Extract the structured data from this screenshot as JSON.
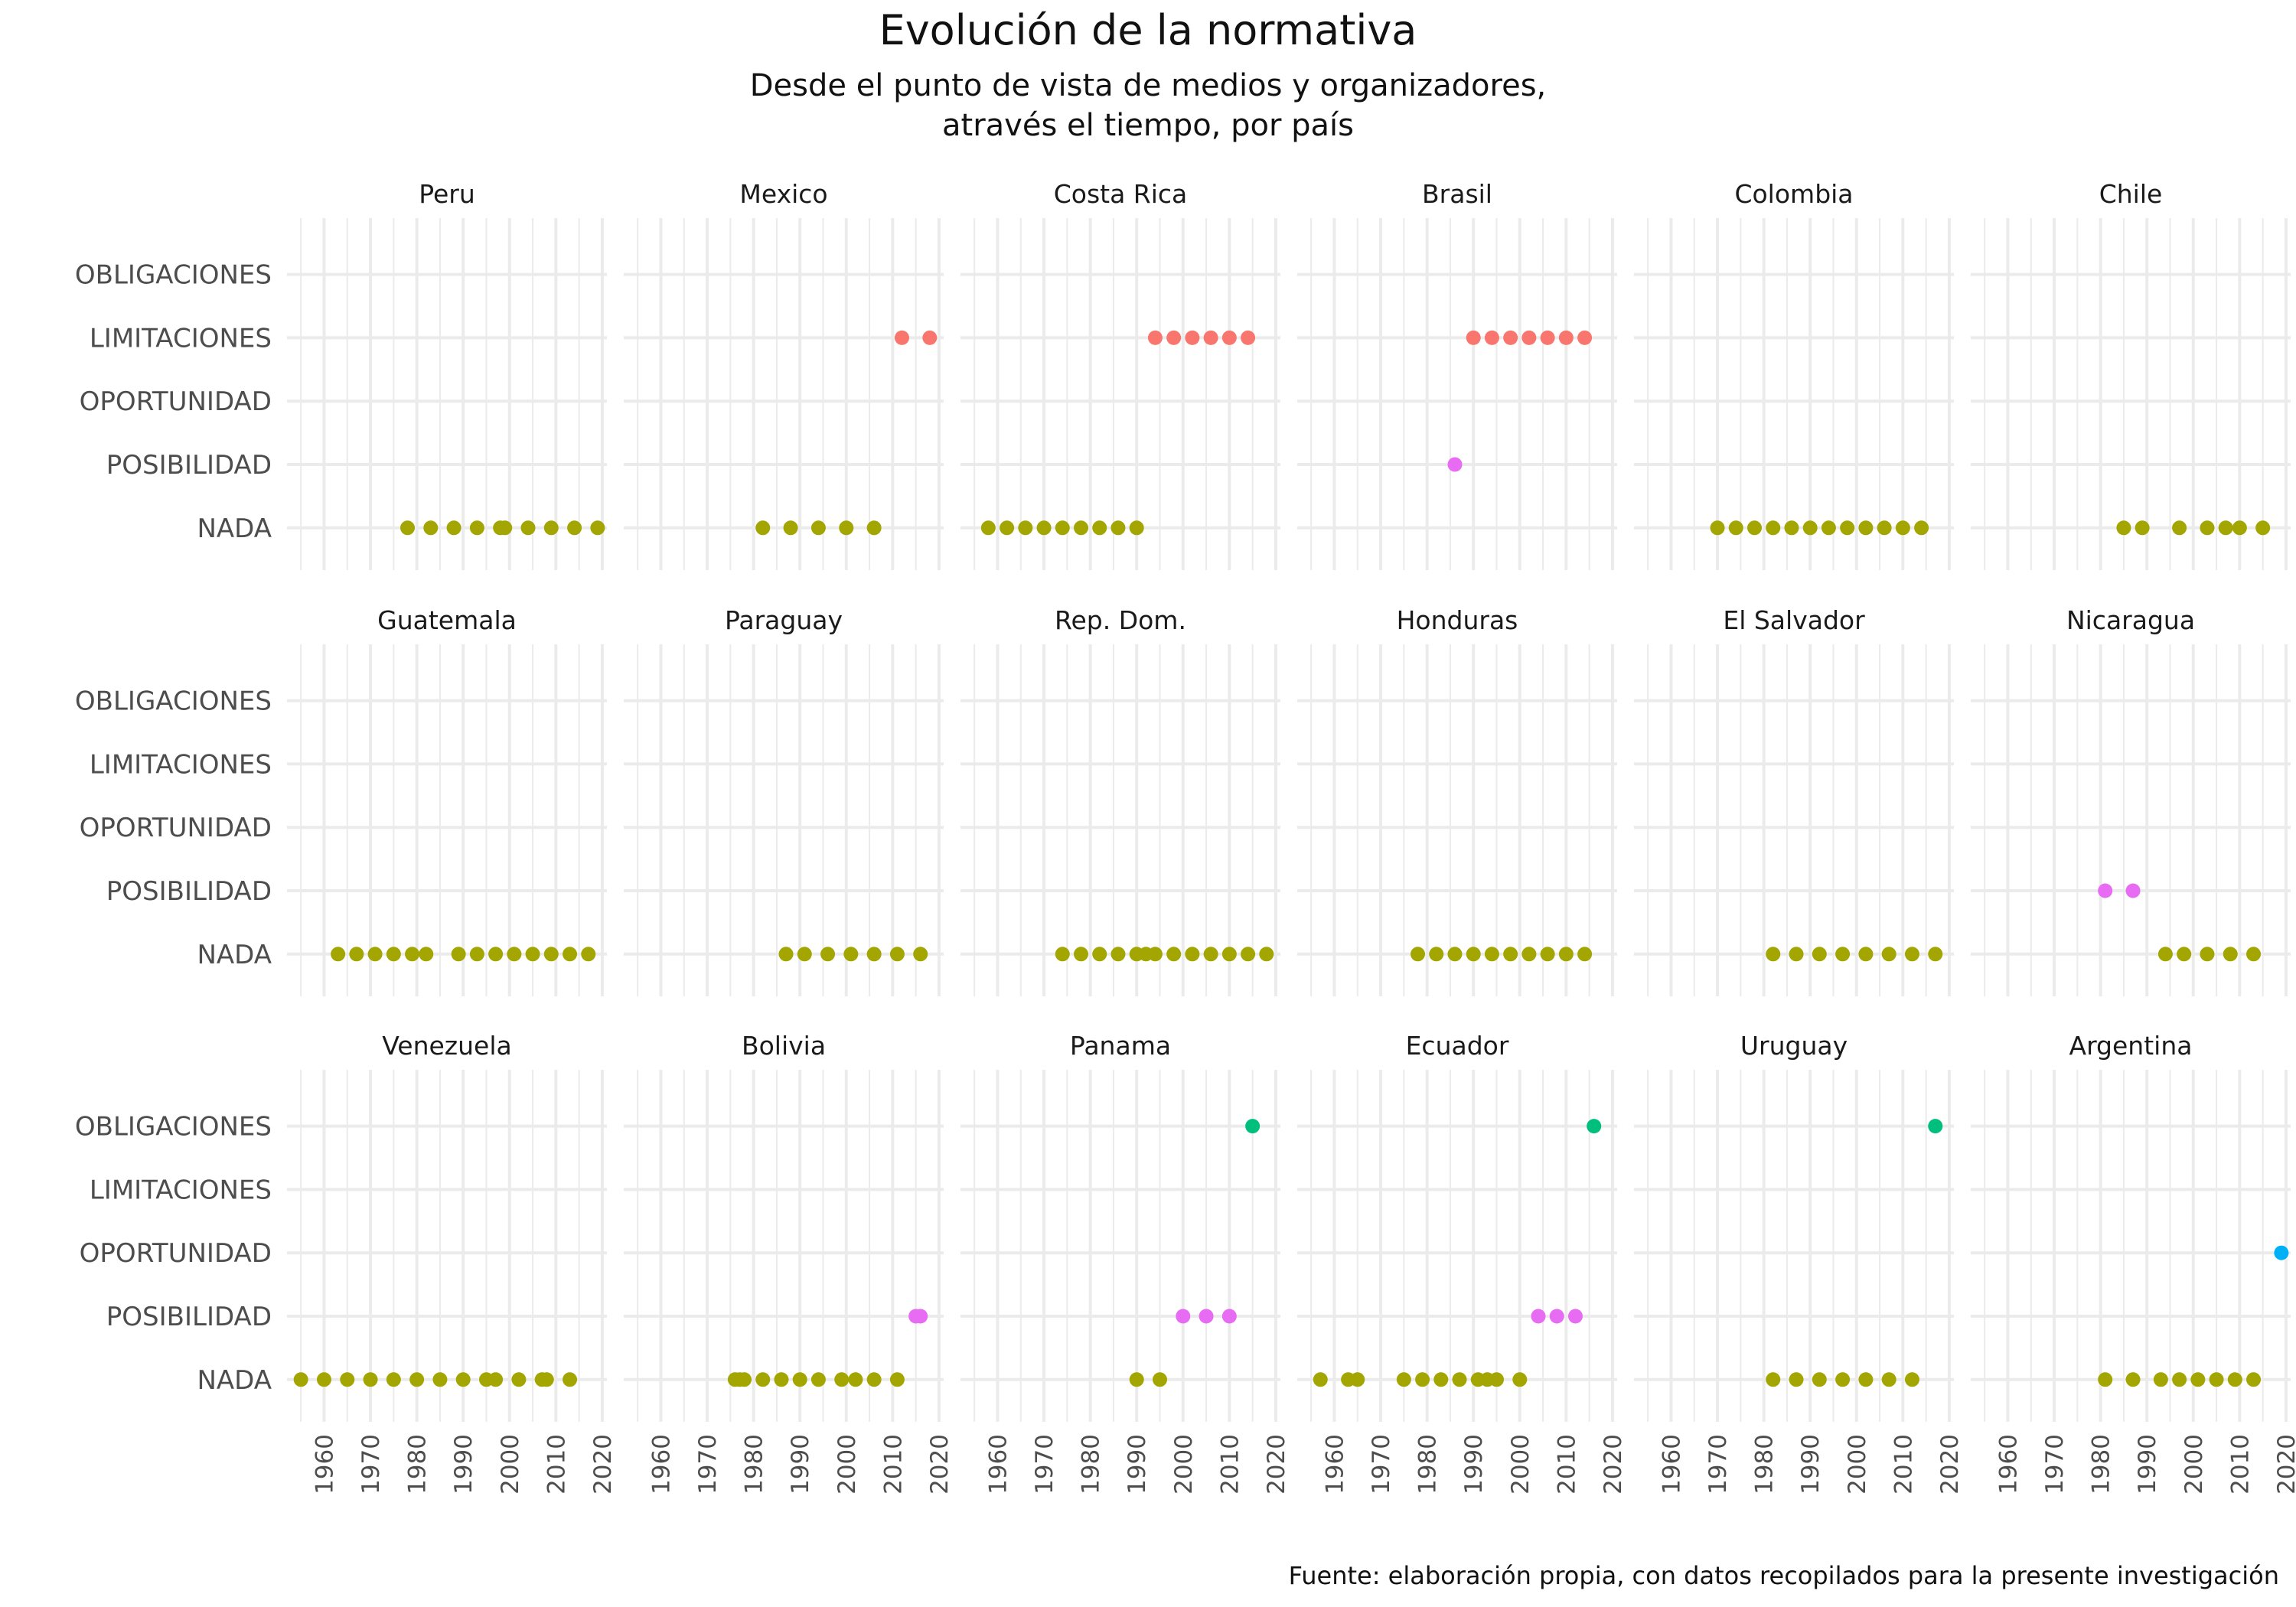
{
  "title": "Evolución de la normativa",
  "subtitle": "Desde el punto de vista de medios y organizadores,\natravés el tiempo, por país",
  "caption": "Fuente: elaboración propia, con datos recopilados para la presente investigación",
  "colors": {
    "NADA": "#A3A500",
    "POSIBILIDAD": "#E76BF3",
    "OPORTUNIDAD": "#00B0F6",
    "LIMITACIONES": "#F8766D",
    "OBLIGACIONES": "#00BF7D",
    "grid": "#ebebeb"
  },
  "chart_data": {
    "type": "scatter",
    "faceted": true,
    "x_ticks": [
      "1960",
      "1970",
      "1980",
      "1990",
      "2000",
      "2010",
      "2020"
    ],
    "xlim": [
      1952,
      2021
    ],
    "y_categories": [
      "NADA",
      "POSIBILIDAD",
      "OPORTUNIDAD",
      "LIMITACIONES",
      "OBLIGACIONES"
    ],
    "grid": true,
    "legend": "none",
    "panels": [
      {
        "country": "Peru",
        "points": [
          {
            "x": 1978,
            "y": "NADA"
          },
          {
            "x": 1983,
            "y": "NADA"
          },
          {
            "x": 1988,
            "y": "NADA"
          },
          {
            "x": 1993,
            "y": "NADA"
          },
          {
            "x": 1998,
            "y": "NADA"
          },
          {
            "x": 1999,
            "y": "NADA"
          },
          {
            "x": 2004,
            "y": "NADA"
          },
          {
            "x": 2009,
            "y": "NADA"
          },
          {
            "x": 2014,
            "y": "NADA"
          },
          {
            "x": 2019,
            "y": "NADA"
          }
        ]
      },
      {
        "country": "Mexico",
        "points": [
          {
            "x": 1982,
            "y": "NADA"
          },
          {
            "x": 1988,
            "y": "NADA"
          },
          {
            "x": 1994,
            "y": "NADA"
          },
          {
            "x": 2000,
            "y": "NADA"
          },
          {
            "x": 2006,
            "y": "NADA"
          },
          {
            "x": 2012,
            "y": "LIMITACIONES"
          },
          {
            "x": 2018,
            "y": "LIMITACIONES"
          }
        ]
      },
      {
        "country": "Costa Rica",
        "points": [
          {
            "x": 1958,
            "y": "NADA"
          },
          {
            "x": 1962,
            "y": "NADA"
          },
          {
            "x": 1966,
            "y": "NADA"
          },
          {
            "x": 1970,
            "y": "NADA"
          },
          {
            "x": 1974,
            "y": "NADA"
          },
          {
            "x": 1978,
            "y": "NADA"
          },
          {
            "x": 1982,
            "y": "NADA"
          },
          {
            "x": 1986,
            "y": "NADA"
          },
          {
            "x": 1990,
            "y": "NADA"
          },
          {
            "x": 1994,
            "y": "LIMITACIONES"
          },
          {
            "x": 1998,
            "y": "LIMITACIONES"
          },
          {
            "x": 2002,
            "y": "LIMITACIONES"
          },
          {
            "x": 2006,
            "y": "LIMITACIONES"
          },
          {
            "x": 2010,
            "y": "LIMITACIONES"
          },
          {
            "x": 2014,
            "y": "LIMITACIONES"
          }
        ]
      },
      {
        "country": "Brasil",
        "points": [
          {
            "x": 1986,
            "y": "POSIBILIDAD"
          },
          {
            "x": 1990,
            "y": "LIMITACIONES"
          },
          {
            "x": 1994,
            "y": "LIMITACIONES"
          },
          {
            "x": 1998,
            "y": "LIMITACIONES"
          },
          {
            "x": 2002,
            "y": "LIMITACIONES"
          },
          {
            "x": 2006,
            "y": "LIMITACIONES"
          },
          {
            "x": 2010,
            "y": "LIMITACIONES"
          },
          {
            "x": 2014,
            "y": "LIMITACIONES"
          }
        ]
      },
      {
        "country": "Colombia",
        "points": [
          {
            "x": 1970,
            "y": "NADA"
          },
          {
            "x": 1974,
            "y": "NADA"
          },
          {
            "x": 1978,
            "y": "NADA"
          },
          {
            "x": 1982,
            "y": "NADA"
          },
          {
            "x": 1986,
            "y": "NADA"
          },
          {
            "x": 1990,
            "y": "NADA"
          },
          {
            "x": 1994,
            "y": "NADA"
          },
          {
            "x": 1998,
            "y": "NADA"
          },
          {
            "x": 2002,
            "y": "NADA"
          },
          {
            "x": 2006,
            "y": "NADA"
          },
          {
            "x": 2010,
            "y": "NADA"
          },
          {
            "x": 2014,
            "y": "NADA"
          }
        ]
      },
      {
        "country": "Chile",
        "points": [
          {
            "x": 1985,
            "y": "NADA"
          },
          {
            "x": 1989,
            "y": "NADA"
          },
          {
            "x": 1997,
            "y": "NADA"
          },
          {
            "x": 2003,
            "y": "NADA"
          },
          {
            "x": 2007,
            "y": "NADA"
          },
          {
            "x": 2010,
            "y": "NADA"
          },
          {
            "x": 2015,
            "y": "NADA"
          }
        ]
      },
      {
        "country": "Guatemala",
        "points": [
          {
            "x": 1963,
            "y": "NADA"
          },
          {
            "x": 1967,
            "y": "NADA"
          },
          {
            "x": 1971,
            "y": "NADA"
          },
          {
            "x": 1975,
            "y": "NADA"
          },
          {
            "x": 1979,
            "y": "NADA"
          },
          {
            "x": 1982,
            "y": "NADA"
          },
          {
            "x": 1989,
            "y": "NADA"
          },
          {
            "x": 1993,
            "y": "NADA"
          },
          {
            "x": 1997,
            "y": "NADA"
          },
          {
            "x": 2001,
            "y": "NADA"
          },
          {
            "x": 2005,
            "y": "NADA"
          },
          {
            "x": 2009,
            "y": "NADA"
          },
          {
            "x": 2013,
            "y": "NADA"
          },
          {
            "x": 2017,
            "y": "NADA"
          }
        ]
      },
      {
        "country": "Paraguay",
        "points": [
          {
            "x": 1987,
            "y": "NADA"
          },
          {
            "x": 1991,
            "y": "NADA"
          },
          {
            "x": 1996,
            "y": "NADA"
          },
          {
            "x": 2001,
            "y": "NADA"
          },
          {
            "x": 2006,
            "y": "NADA"
          },
          {
            "x": 2011,
            "y": "NADA"
          },
          {
            "x": 2016,
            "y": "NADA"
          }
        ]
      },
      {
        "country": "Rep. Dom.",
        "points": [
          {
            "x": 1974,
            "y": "NADA"
          },
          {
            "x": 1978,
            "y": "NADA"
          },
          {
            "x": 1982,
            "y": "NADA"
          },
          {
            "x": 1986,
            "y": "NADA"
          },
          {
            "x": 1990,
            "y": "NADA"
          },
          {
            "x": 1992,
            "y": "NADA"
          },
          {
            "x": 1994,
            "y": "NADA"
          },
          {
            "x": 1998,
            "y": "NADA"
          },
          {
            "x": 2002,
            "y": "NADA"
          },
          {
            "x": 2006,
            "y": "NADA"
          },
          {
            "x": 2010,
            "y": "NADA"
          },
          {
            "x": 2014,
            "y": "NADA"
          },
          {
            "x": 2018,
            "y": "NADA"
          }
        ]
      },
      {
        "country": "Honduras",
        "points": [
          {
            "x": 1978,
            "y": "NADA"
          },
          {
            "x": 1982,
            "y": "NADA"
          },
          {
            "x": 1986,
            "y": "NADA"
          },
          {
            "x": 1990,
            "y": "NADA"
          },
          {
            "x": 1994,
            "y": "NADA"
          },
          {
            "x": 1998,
            "y": "NADA"
          },
          {
            "x": 2002,
            "y": "NADA"
          },
          {
            "x": 2006,
            "y": "NADA"
          },
          {
            "x": 2010,
            "y": "NADA"
          },
          {
            "x": 2014,
            "y": "NADA"
          }
        ]
      },
      {
        "country": "El Salvador",
        "points": [
          {
            "x": 1982,
            "y": "NADA"
          },
          {
            "x": 1987,
            "y": "NADA"
          },
          {
            "x": 1992,
            "y": "NADA"
          },
          {
            "x": 1997,
            "y": "NADA"
          },
          {
            "x": 2002,
            "y": "NADA"
          },
          {
            "x": 2007,
            "y": "NADA"
          },
          {
            "x": 2012,
            "y": "NADA"
          },
          {
            "x": 2017,
            "y": "NADA"
          }
        ]
      },
      {
        "country": "Nicaragua",
        "points": [
          {
            "x": 1981,
            "y": "POSIBILIDAD"
          },
          {
            "x": 1987,
            "y": "POSIBILIDAD"
          },
          {
            "x": 1994,
            "y": "NADA"
          },
          {
            "x": 1998,
            "y": "NADA"
          },
          {
            "x": 2003,
            "y": "NADA"
          },
          {
            "x": 2008,
            "y": "NADA"
          },
          {
            "x": 2013,
            "y": "NADA"
          }
        ]
      },
      {
        "country": "Venezuela",
        "points": [
          {
            "x": 1955,
            "y": "NADA"
          },
          {
            "x": 1960,
            "y": "NADA"
          },
          {
            "x": 1965,
            "y": "NADA"
          },
          {
            "x": 1970,
            "y": "NADA"
          },
          {
            "x": 1975,
            "y": "NADA"
          },
          {
            "x": 1980,
            "y": "NADA"
          },
          {
            "x": 1985,
            "y": "NADA"
          },
          {
            "x": 1990,
            "y": "NADA"
          },
          {
            "x": 1995,
            "y": "NADA"
          },
          {
            "x": 1997,
            "y": "NADA"
          },
          {
            "x": 2002,
            "y": "NADA"
          },
          {
            "x": 2007,
            "y": "NADA"
          },
          {
            "x": 2008,
            "y": "NADA"
          },
          {
            "x": 2013,
            "y": "NADA"
          }
        ]
      },
      {
        "country": "Bolivia",
        "points": [
          {
            "x": 1976,
            "y": "NADA"
          },
          {
            "x": 1977,
            "y": "NADA"
          },
          {
            "x": 1978,
            "y": "NADA"
          },
          {
            "x": 1982,
            "y": "NADA"
          },
          {
            "x": 1986,
            "y": "NADA"
          },
          {
            "x": 1990,
            "y": "NADA"
          },
          {
            "x": 1994,
            "y": "NADA"
          },
          {
            "x": 1999,
            "y": "NADA"
          },
          {
            "x": 2002,
            "y": "NADA"
          },
          {
            "x": 2006,
            "y": "NADA"
          },
          {
            "x": 2011,
            "y": "NADA"
          },
          {
            "x": 2015,
            "y": "POSIBILIDAD"
          },
          {
            "x": 2016,
            "y": "POSIBILIDAD"
          }
        ]
      },
      {
        "country": "Panama",
        "points": [
          {
            "x": 1990,
            "y": "NADA"
          },
          {
            "x": 1995,
            "y": "NADA"
          },
          {
            "x": 2000,
            "y": "POSIBILIDAD"
          },
          {
            "x": 2005,
            "y": "POSIBILIDAD"
          },
          {
            "x": 2010,
            "y": "POSIBILIDAD"
          },
          {
            "x": 2015,
            "y": "OBLIGACIONES"
          }
        ]
      },
      {
        "country": "Ecuador",
        "points": [
          {
            "x": 1957,
            "y": "NADA"
          },
          {
            "x": 1963,
            "y": "NADA"
          },
          {
            "x": 1965,
            "y": "NADA"
          },
          {
            "x": 1975,
            "y": "NADA"
          },
          {
            "x": 1979,
            "y": "NADA"
          },
          {
            "x": 1983,
            "y": "NADA"
          },
          {
            "x": 1987,
            "y": "NADA"
          },
          {
            "x": 1991,
            "y": "NADA"
          },
          {
            "x": 1993,
            "y": "NADA"
          },
          {
            "x": 1995,
            "y": "NADA"
          },
          {
            "x": 2000,
            "y": "NADA"
          },
          {
            "x": 2004,
            "y": "POSIBILIDAD"
          },
          {
            "x": 2008,
            "y": "POSIBILIDAD"
          },
          {
            "x": 2012,
            "y": "POSIBILIDAD"
          },
          {
            "x": 2016,
            "y": "OBLIGACIONES"
          }
        ]
      },
      {
        "country": "Uruguay",
        "points": [
          {
            "x": 1982,
            "y": "NADA"
          },
          {
            "x": 1987,
            "y": "NADA"
          },
          {
            "x": 1992,
            "y": "NADA"
          },
          {
            "x": 1997,
            "y": "NADA"
          },
          {
            "x": 2002,
            "y": "NADA"
          },
          {
            "x": 2007,
            "y": "NADA"
          },
          {
            "x": 2012,
            "y": "NADA"
          },
          {
            "x": 2017,
            "y": "OBLIGACIONES"
          }
        ]
      },
      {
        "country": "Argentina",
        "points": [
          {
            "x": 1981,
            "y": "NADA"
          },
          {
            "x": 1987,
            "y": "NADA"
          },
          {
            "x": 1993,
            "y": "NADA"
          },
          {
            "x": 1997,
            "y": "NADA"
          },
          {
            "x": 2001,
            "y": "NADA"
          },
          {
            "x": 2005,
            "y": "NADA"
          },
          {
            "x": 2009,
            "y": "NADA"
          },
          {
            "x": 2013,
            "y": "NADA"
          },
          {
            "x": 2019,
            "y": "OPORTUNIDAD"
          }
        ]
      }
    ]
  }
}
